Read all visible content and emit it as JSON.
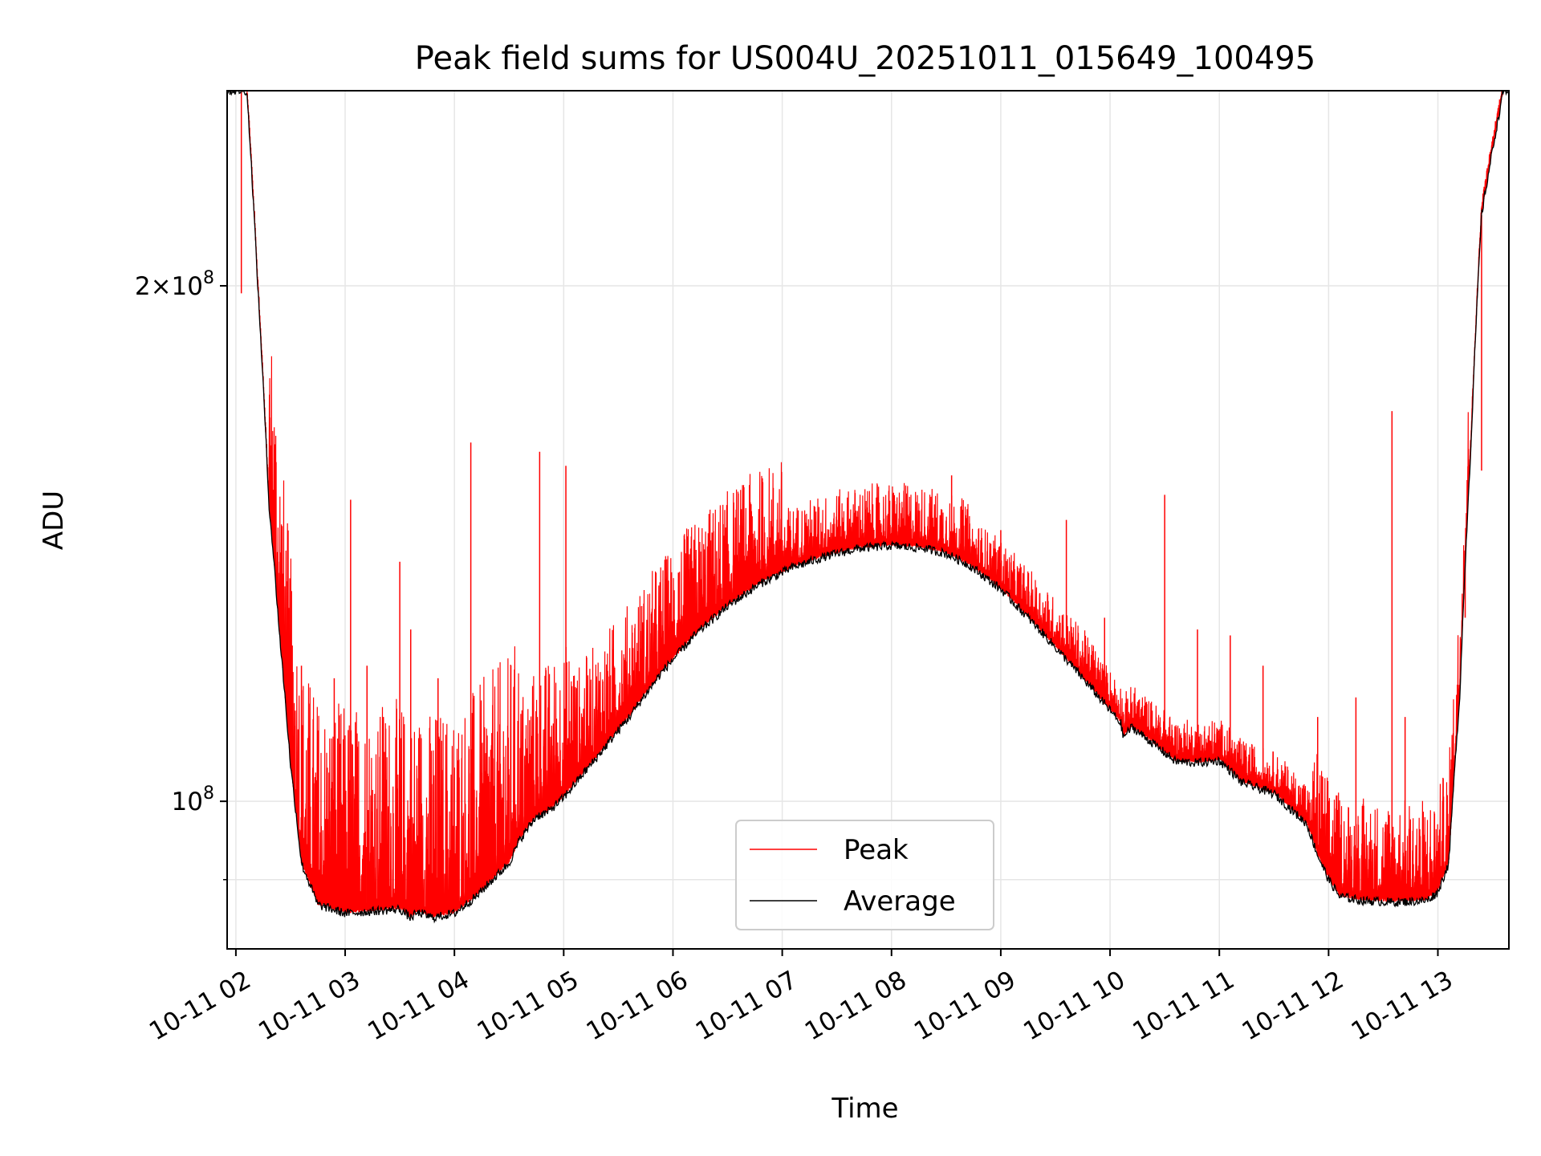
{
  "chart_data": {
    "type": "line",
    "title": "Peak field sums for US004U_20251011_015649_100495",
    "xlabel": "Time",
    "ylabel": "ADU",
    "yscale": "log",
    "ylim": [
      82000000,
      260000000
    ],
    "xlim": [
      1.92,
      13.65
    ],
    "grid": true,
    "legend_position": "bottom-center",
    "x_tick_values": [
      2,
      3,
      4,
      5,
      6,
      7,
      8,
      9,
      10,
      11,
      12,
      13
    ],
    "x_ticks": [
      "10-11 02",
      "10-11 03",
      "10-11 04",
      "10-11 05",
      "10-11 06",
      "10-11 07",
      "10-11 08",
      "10-11 09",
      "10-11 10",
      "10-11 11",
      "10-11 12",
      "10-11 13"
    ],
    "y_ticks": [
      {
        "value": 200000000,
        "base": "2×10",
        "exp": "8"
      },
      {
        "value": 100000000,
        "base": "10",
        "exp": "8"
      }
    ],
    "y_minor_ticks": [
      90000000
    ],
    "series": [
      {
        "name": "Average",
        "color": "#000000",
        "hours": [
          1.95,
          2.1,
          2.2,
          2.3,
          2.4,
          2.5,
          2.6,
          2.75,
          3.0,
          3.5,
          3.6,
          3.65,
          3.7,
          3.8,
          4.0,
          4.2,
          4.5,
          4.6,
          4.75,
          4.85,
          5.0,
          5.3,
          5.6,
          5.9,
          6.2,
          6.5,
          6.8,
          7.1,
          7.4,
          7.7,
          8.0,
          8.3,
          8.5,
          8.7,
          9.0,
          9.3,
          9.6,
          9.9,
          10.1,
          10.12,
          10.2,
          10.4,
          10.6,
          10.8,
          11.0,
          11.1,
          11.2,
          11.5,
          11.8,
          11.9,
          12.0,
          12.1,
          12.3,
          12.6,
          12.9,
          13.0,
          13.1,
          13.2,
          13.3,
          13.4,
          13.6
        ],
        "values": [
          260000000,
          260000000,
          200000000,
          150000000,
          125000000,
          105000000,
          92000000,
          87000000,
          86000000,
          86500000,
          85500000,
          86000000,
          86000000,
          85500000,
          86000000,
          88000000,
          92000000,
          95000000,
          98000000,
          98500000,
          100500000,
          106000000,
          112000000,
          119000000,
          125000000,
          130000000,
          134000000,
          137000000,
          139000000,
          140500000,
          141000000,
          140500000,
          139500000,
          137500000,
          133000000,
          127000000,
          121000000,
          115000000,
          111000000,
          109000000,
          110500000,
          108000000,
          105500000,
          105300000,
          105600000,
          104200000,
          102600000,
          101000000,
          97000000,
          93000000,
          90000000,
          88000000,
          87500000,
          87300000,
          87500000,
          88500000,
          92000000,
          115000000,
          160000000,
          220000000,
          260000000
        ]
      },
      {
        "name": "Peak",
        "color": "#ff0000",
        "spikes": [
          {
            "hour": 2.05,
            "value": 198000000
          },
          {
            "hour": 2.5,
            "value": 125000000
          },
          {
            "hour": 2.6,
            "value": 120000000
          },
          {
            "hour": 2.75,
            "value": 110000000
          },
          {
            "hour": 2.9,
            "value": 118000000
          },
          {
            "hour": 3.05,
            "value": 150000000
          },
          {
            "hour": 3.2,
            "value": 120000000
          },
          {
            "hour": 3.35,
            "value": 112000000
          },
          {
            "hour": 3.5,
            "value": 138000000
          },
          {
            "hour": 3.6,
            "value": 126000000
          },
          {
            "hour": 3.85,
            "value": 118000000
          },
          {
            "hour": 4.15,
            "value": 162000000
          },
          {
            "hour": 4.55,
            "value": 110000000
          },
          {
            "hour": 4.78,
            "value": 160000000
          },
          {
            "hour": 5.02,
            "value": 157000000
          },
          {
            "hour": 5.3,
            "value": 118000000
          },
          {
            "hour": 5.7,
            "value": 130000000
          },
          {
            "hour": 6.05,
            "value": 136000000
          },
          {
            "hour": 6.4,
            "value": 140000000
          },
          {
            "hour": 6.7,
            "value": 153000000
          },
          {
            "hour": 7.05,
            "value": 146000000
          },
          {
            "hour": 7.5,
            "value": 146000000
          },
          {
            "hour": 7.8,
            "value": 148000000
          },
          {
            "hour": 8.55,
            "value": 155000000
          },
          {
            "hour": 8.65,
            "value": 148000000
          },
          {
            "hour": 9.0,
            "value": 144000000
          },
          {
            "hour": 9.6,
            "value": 146000000
          },
          {
            "hour": 9.95,
            "value": 128000000
          },
          {
            "hour": 10.5,
            "value": 151000000
          },
          {
            "hour": 10.8,
            "value": 126000000
          },
          {
            "hour": 11.1,
            "value": 125000000
          },
          {
            "hour": 11.4,
            "value": 120000000
          },
          {
            "hour": 11.9,
            "value": 112000000
          },
          {
            "hour": 12.25,
            "value": 115000000
          },
          {
            "hour": 12.58,
            "value": 169000000
          },
          {
            "hour": 12.7,
            "value": 112000000
          },
          {
            "hour": 13.25,
            "value": 128000000
          },
          {
            "hour": 13.4,
            "value": 156000000
          }
        ]
      }
    ]
  }
}
